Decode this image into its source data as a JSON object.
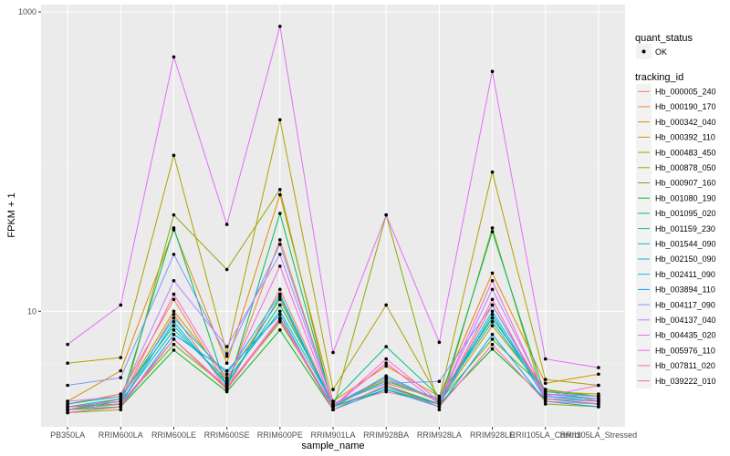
{
  "chart_data": {
    "type": "line",
    "xlabel": "sample_name",
    "ylabel": "FPKM + 1",
    "y_scale": "log10",
    "ylim": [
      2,
      1000
    ],
    "y_ticks": [
      {
        "value": 10,
        "label": "10"
      },
      {
        "value": 1000,
        "label": "1000"
      }
    ],
    "categories": [
      "PB350LA",
      "RRIM600LA",
      "RRIM600LE",
      "RRIM600SE",
      "RRIM600PE",
      "RRIM901LA",
      "RRIM928BA",
      "RRIM928LA",
      "RRIM928LE",
      "RRII105LA_Control",
      "RRII105LA_Stressed"
    ],
    "grid": true,
    "legend_position": "right",
    "legend_shape": {
      "title": "quant_status",
      "entries": [
        "OK"
      ]
    },
    "legend_color_title": "tracking_id",
    "series": [
      {
        "name": "Hb_000005_240",
        "color": "#F8766D",
        "values": [
          2.3,
          2.4,
          9.5,
          3.0,
          14.0,
          2.35,
          2.9,
          2.4,
          11.0,
          2.8,
          2.6
        ]
      },
      {
        "name": "Hb_000190_170",
        "color": "#EC8239",
        "values": [
          2.4,
          2.8,
          12.0,
          3.2,
          30.0,
          2.4,
          3.3,
          2.6,
          9.0,
          3.0,
          2.5
        ]
      },
      {
        "name": "Hb_000342_040",
        "color": "#DB8E00",
        "values": [
          2.5,
          4.0,
          35.0,
          4.5,
          60.0,
          2.5,
          4.3,
          2.7,
          18.0,
          3.3,
          3.8
        ]
      },
      {
        "name": "Hb_000392_110",
        "color": "#C79800",
        "values": [
          2.2,
          2.6,
          10.0,
          3.6,
          12.0,
          2.3,
          3.5,
          2.5,
          8.0,
          2.9,
          2.8
        ]
      },
      {
        "name": "Hb_000483_450",
        "color": "#AEA200",
        "values": [
          4.5,
          4.9,
          110.0,
          5.2,
          190.0,
          3.0,
          11.0,
          2.6,
          85.0,
          3.5,
          3.2
        ]
      },
      {
        "name": "Hb_000878_050",
        "color": "#8FAA00",
        "values": [
          2.1,
          2.2,
          44.0,
          19.0,
          65.0,
          2.2,
          44.0,
          2.2,
          36.0,
          2.4,
          2.3
        ]
      },
      {
        "name": "Hb_000907_160",
        "color": "#64B200",
        "values": [
          2.3,
          2.4,
          6.0,
          3.1,
          8.5,
          2.3,
          3.6,
          2.5,
          6.5,
          3.0,
          2.7
        ]
      },
      {
        "name": "Hb_001080_190",
        "color": "#00B81B",
        "values": [
          2.2,
          2.3,
          5.5,
          2.9,
          7.5,
          2.2,
          3.2,
          2.4,
          5.6,
          2.6,
          2.4
        ]
      },
      {
        "name": "Hb_001095_020",
        "color": "#00BD5C",
        "values": [
          2.3,
          2.5,
          36.0,
          3.0,
          45.0,
          2.3,
          3.0,
          2.4,
          34.0,
          2.7,
          2.5
        ]
      },
      {
        "name": "Hb_001159_230",
        "color": "#00C08E",
        "values": [
          2.4,
          2.7,
          8.0,
          3.3,
          11.0,
          2.5,
          5.8,
          2.7,
          9.0,
          2.9,
          2.7
        ]
      },
      {
        "name": "Hb_001544_090",
        "color": "#00C1B7",
        "values": [
          2.2,
          2.5,
          7.5,
          3.5,
          10.0,
          2.4,
          3.4,
          2.6,
          8.5,
          2.8,
          2.6
        ]
      },
      {
        "name": "Hb_002150_090",
        "color": "#00BDDC",
        "values": [
          2.3,
          2.6,
          9.0,
          3.8,
          13.0,
          2.3,
          3.7,
          2.5,
          10.0,
          2.7,
          2.5
        ]
      },
      {
        "name": "Hb_002411_090",
        "color": "#00B5EE",
        "values": [
          2.2,
          2.4,
          8.5,
          3.2,
          12.5,
          2.3,
          3.1,
          2.4,
          9.5,
          2.6,
          2.4
        ]
      },
      {
        "name": "Hb_003894_110",
        "color": "#00A6FF",
        "values": [
          2.1,
          2.3,
          7.0,
          4.0,
          9.5,
          2.2,
          3.0,
          2.3,
          7.0,
          2.5,
          2.3
        ]
      },
      {
        "name": "Hb_004117_090",
        "color": "#7F96FF",
        "values": [
          3.2,
          3.6,
          24.0,
          5.0,
          28.0,
          2.4,
          3.3,
          3.4,
          11.0,
          2.7,
          2.6
        ]
      },
      {
        "name": "Hb_004137_040",
        "color": "#BC81FF",
        "values": [
          2.5,
          2.7,
          16.0,
          5.8,
          24.0,
          2.4,
          3.6,
          2.5,
          14.0,
          2.8,
          2.7
        ]
      },
      {
        "name": "Hb_004435_020",
        "color": "#E26EF7",
        "values": [
          6.0,
          11.0,
          500.0,
          38.0,
          800.0,
          5.3,
          44.0,
          6.2,
          400.0,
          4.8,
          4.2
        ]
      },
      {
        "name": "Hb_005976_110",
        "color": "#F863DF",
        "values": [
          2.3,
          2.5,
          13.0,
          3.4,
          20.0,
          2.3,
          4.8,
          2.5,
          16.0,
          2.7,
          3.2
        ]
      },
      {
        "name": "Hb_007811_020",
        "color": "#FF62BC",
        "values": [
          2.2,
          2.4,
          6.5,
          3.1,
          9.0,
          2.3,
          4.5,
          2.4,
          12.0,
          2.6,
          2.5
        ]
      },
      {
        "name": "Hb_039222_010",
        "color": "#FF6A98",
        "values": [
          2.1,
          2.3,
          6.5,
          3.0,
          8.8,
          2.2,
          3.2,
          2.3,
          6.0,
          2.5,
          2.4
        ]
      }
    ]
  }
}
